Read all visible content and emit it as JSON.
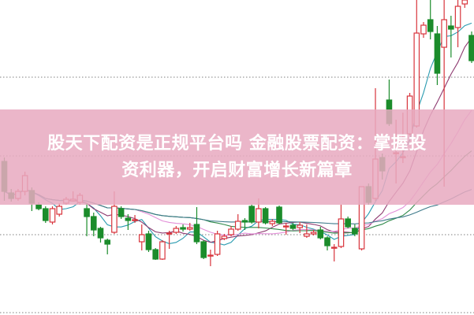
{
  "banner": {
    "line1": "股天下配资是正规平台吗 金融股票配资：掌握投",
    "line2": "资利器，开启财富增长新篇章",
    "color": "#e8aac0"
  },
  "chart_data": {
    "type": "candlestick",
    "title": "",
    "xlabel": "",
    "ylabel": "",
    "ylim": [
      0,
      400
    ],
    "grid": "dotted horizontal",
    "gridlines": [
      3,
      102,
      202,
      302
    ],
    "up_color": "#d8343c",
    "down_color": "#1b8c2b",
    "ohlc_order": "open, close, high, low",
    "candles": [
      [
        195,
        157,
        200,
        145
      ],
      [
        155,
        148,
        160,
        144
      ],
      [
        148,
        157,
        160,
        145
      ],
      [
        157,
        177,
        182,
        152
      ],
      [
        158,
        142,
        162,
        132
      ],
      [
        140,
        135,
        143,
        133
      ],
      [
        135,
        120,
        138,
        117
      ],
      [
        118,
        135,
        138,
        115
      ],
      [
        128,
        138,
        142,
        125
      ],
      [
        142,
        147,
        150,
        140
      ],
      [
        145,
        147,
        157,
        144
      ],
      [
        143,
        152,
        155,
        140
      ],
      [
        135,
        125,
        142,
        100
      ],
      [
        125,
        108,
        130,
        100
      ],
      [
        110,
        98,
        112,
        92
      ],
      [
        95,
        90,
        97,
        77
      ],
      [
        105,
        138,
        157,
        103
      ],
      [
        135,
        125,
        138,
        122
      ],
      [
        123,
        120,
        128,
        108
      ],
      [
        121,
        121,
        127,
        117
      ],
      [
        93,
        102,
        115,
        82
      ],
      [
        103,
        83,
        107,
        80
      ],
      [
        83,
        71,
        85,
        70
      ],
      [
        71,
        93,
        95,
        70
      ],
      [
        104,
        104,
        107,
        84
      ],
      [
        105,
        110,
        113,
        103
      ],
      [
        111,
        109,
        115,
        106
      ],
      [
        109,
        111,
        117,
        107
      ],
      [
        115,
        93,
        137,
        90
      ],
      [
        93,
        73,
        95,
        71
      ],
      [
        75,
        76,
        83,
        62
      ],
      [
        77,
        103,
        107,
        75
      ],
      [
        97,
        100,
        103,
        95
      ],
      [
        102,
        109,
        113,
        100
      ],
      [
        109,
        119,
        128,
        107
      ],
      [
        120,
        118,
        123,
        108
      ],
      [
        138,
        118,
        140,
        116
      ],
      [
        118,
        135,
        148,
        110
      ],
      [
        135,
        117,
        137,
        115
      ],
      [
        116,
        119,
        122,
        113
      ],
      [
        137,
        117,
        139,
        115
      ],
      [
        113,
        113,
        117,
        102
      ],
      [
        114,
        110,
        117,
        108
      ],
      [
        111,
        114,
        118,
        104
      ],
      [
        100,
        103,
        115,
        98
      ],
      [
        103,
        105,
        108,
        101
      ],
      [
        108,
        98,
        112,
        96
      ],
      [
        98,
        88,
        100,
        82
      ],
      [
        85,
        86,
        90,
        68
      ],
      [
        87,
        122,
        140,
        85
      ],
      [
        122,
        112,
        125,
        110
      ],
      [
        110,
        103,
        115,
        100
      ],
      [
        84,
        163,
        163,
        82
      ],
      [
        163,
        143,
        167,
        140
      ],
      [
        148,
        198,
        288,
        145
      ],
      [
        200,
        183,
        205,
        172
      ],
      [
        273,
        243,
        299,
        240
      ],
      [
        205,
        206,
        248,
        167
      ],
      [
        200,
        201,
        257,
        193
      ],
      [
        230,
        278,
        282,
        228
      ],
      [
        240,
        358,
        400,
        238
      ],
      [
        357,
        368,
        372,
        352
      ],
      [
        375,
        360,
        400,
        350
      ],
      [
        357,
        307,
        367,
        292
      ],
      [
        340,
        375,
        400,
        163
      ],
      [
        367,
        363,
        380,
        327
      ],
      [
        365,
        392,
        400,
        340
      ],
      [
        395,
        400,
        405,
        390
      ],
      [
        355,
        323,
        360,
        320
      ]
    ],
    "moving_averages": [
      {
        "period": 5,
        "color": "#2a9bb0"
      },
      {
        "period": 10,
        "color": "#8e3a70"
      },
      {
        "period": 20,
        "color": "#e38fd8"
      },
      {
        "period": 30,
        "color": "#2f8a4a"
      },
      {
        "period": 60,
        "color": "#3d7a8a"
      }
    ]
  }
}
